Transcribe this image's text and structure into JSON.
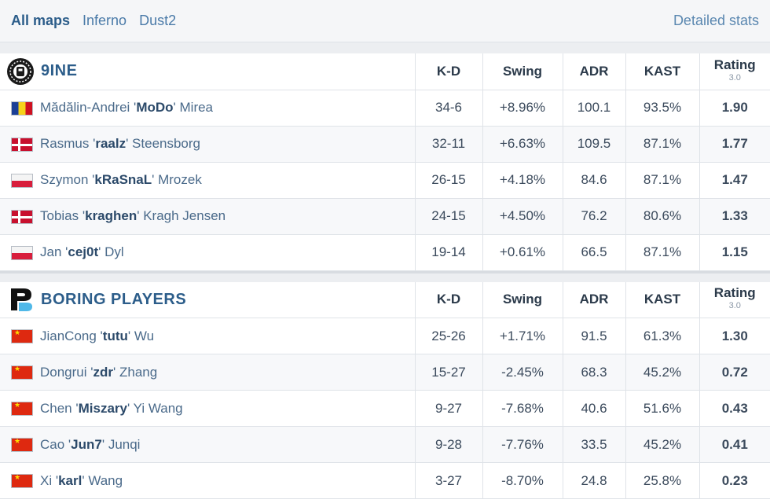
{
  "map_tabs": [
    "All maps",
    "Inferno",
    "Dust2"
  ],
  "detailed_stats_label": "Detailed stats",
  "columns": {
    "kd": "K-D",
    "swing": "Swing",
    "adr": "ADR",
    "kast": "KAST",
    "rating": "Rating",
    "rating_sub": "3.0"
  },
  "teams": [
    {
      "name": "9INE",
      "logo_icon": "9ine-logo-icon",
      "players": [
        {
          "first": "Mădălin-Andrei '",
          "nick": "MoDo",
          "last": "' Mirea",
          "flag": "ro",
          "kd": "34-6",
          "swing": "+8.96%",
          "swing_sign": "pos",
          "adr": "100.1",
          "kast": "93.5%",
          "rating": "1.90",
          "rating_class": "good"
        },
        {
          "first": "Rasmus '",
          "nick": "raalz",
          "last": "' Steensborg",
          "flag": "dk",
          "kd": "32-11",
          "swing": "+6.63%",
          "swing_sign": "pos",
          "adr": "109.5",
          "kast": "87.1%",
          "rating": "1.77",
          "rating_class": "good"
        },
        {
          "first": "Szymon '",
          "nick": "kRaSnaL",
          "last": "' Mrozek",
          "flag": "pl",
          "kd": "26-15",
          "swing": "+4.18%",
          "swing_sign": "pos",
          "adr": "84.6",
          "kast": "87.1%",
          "rating": "1.47",
          "rating_class": "good"
        },
        {
          "first": "Tobias '",
          "nick": "kraghen",
          "last": "' Kragh Jensen",
          "flag": "dk",
          "kd": "24-15",
          "swing": "+4.50%",
          "swing_sign": "pos",
          "adr": "76.2",
          "kast": "80.6%",
          "rating": "1.33",
          "rating_class": "good"
        },
        {
          "first": "Jan '",
          "nick": "cej0t",
          "last": "' Dyl",
          "flag": "pl",
          "kd": "19-14",
          "swing": "+0.61%",
          "swing_sign": "neutral",
          "adr": "66.5",
          "kast": "87.1%",
          "rating": "1.15",
          "rating_class": "good"
        }
      ]
    },
    {
      "name": "BORING PLAYERS",
      "logo_icon": "boring-players-logo-icon",
      "players": [
        {
          "first": "JianCong '",
          "nick": "tutu",
          "last": "' Wu",
          "flag": "cn",
          "kd": "25-26",
          "swing": "+1.71%",
          "swing_sign": "pos",
          "adr": "91.5",
          "kast": "61.3%",
          "rating": "1.30",
          "rating_class": "good"
        },
        {
          "first": "Dongrui '",
          "nick": "zdr",
          "last": "' Zhang",
          "flag": "cn",
          "kd": "15-27",
          "swing": "-2.45%",
          "swing_sign": "neg",
          "adr": "68.3",
          "kast": "45.2%",
          "rating": "0.72",
          "rating_class": "bad"
        },
        {
          "first": "Chen '",
          "nick": "Miszary",
          "last": "' Yi Wang",
          "flag": "cn",
          "kd": "9-27",
          "swing": "-7.68%",
          "swing_sign": "neg",
          "adr": "40.6",
          "kast": "51.6%",
          "rating": "0.43",
          "rating_class": "bad"
        },
        {
          "first": "Cao '",
          "nick": "Jun7",
          "last": "' Junqi",
          "flag": "cn",
          "kd": "9-28",
          "swing": "-7.76%",
          "swing_sign": "neg",
          "adr": "33.5",
          "kast": "45.2%",
          "rating": "0.41",
          "rating_class": "bad"
        },
        {
          "first": "Xi '",
          "nick": "karl",
          "last": "' Wang",
          "flag": "cn",
          "kd": "3-27",
          "swing": "-8.70%",
          "swing_sign": "neg",
          "adr": "24.8",
          "kast": "25.8%",
          "rating": "0.23",
          "rating_class": "bad"
        }
      ]
    }
  ]
}
